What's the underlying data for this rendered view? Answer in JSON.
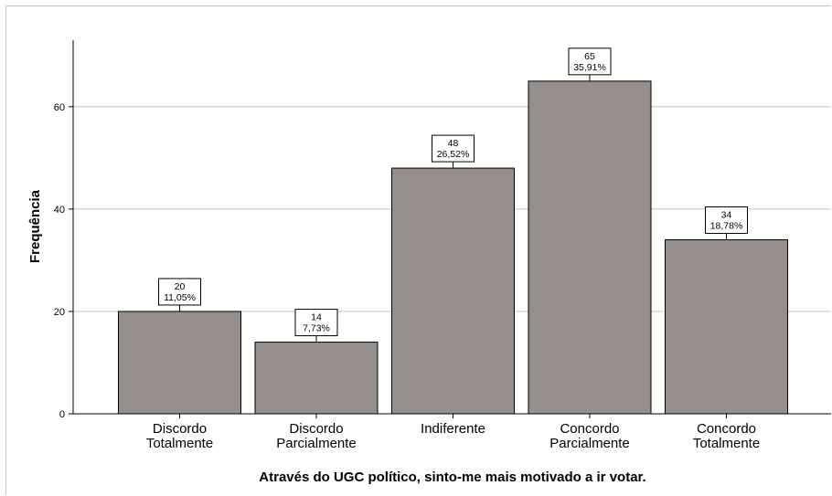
{
  "chart_data": {
    "type": "bar",
    "title": "",
    "xlabel": "Através do UGC político, sinto-me mais motivado a ir votar.",
    "ylabel": "Frequência",
    "ylim": [
      0,
      73
    ],
    "yticks": [
      0,
      20,
      40,
      60
    ],
    "grid": true,
    "categories": [
      [
        "Discordo",
        "Totalmente"
      ],
      [
        "Discordo",
        "Parcialmente"
      ],
      [
        "Indiferente"
      ],
      [
        "Concordo",
        "Parcialmente"
      ],
      [
        "Concordo",
        "Totalmente"
      ]
    ],
    "values": [
      20,
      14,
      48,
      65,
      34
    ],
    "percent_labels": [
      "11,05%",
      "7,73%",
      "26,52%",
      "35,91%",
      "18,78%"
    ],
    "bar_color": "#938f8d",
    "grid_color": "#c0c0c0"
  }
}
